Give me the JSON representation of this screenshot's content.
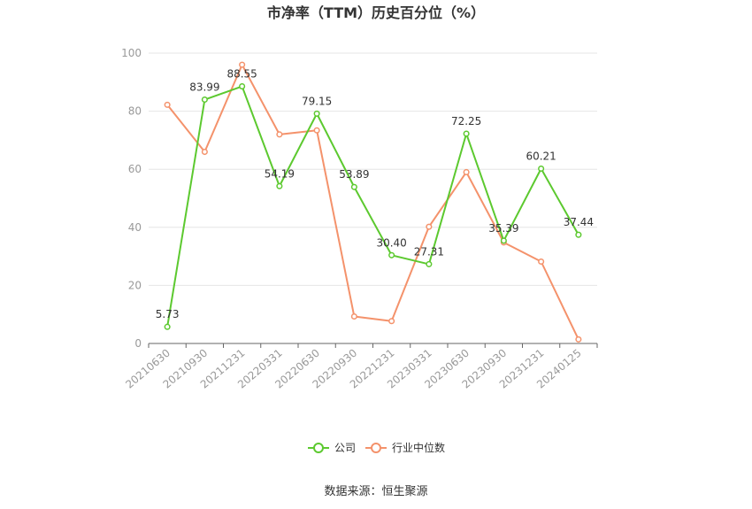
{
  "chart_data": {
    "type": "line",
    "title": "市净率（TTM）历史百分位（%）",
    "categories": [
      "20210630",
      "20210930",
      "20211231",
      "20220331",
      "20220630",
      "20220930",
      "20221231",
      "20230331",
      "20230630",
      "20230930",
      "20231231",
      "20240125"
    ],
    "ylim": [
      0,
      100
    ],
    "yticks": [
      0,
      20,
      40,
      60,
      80,
      100
    ],
    "grid": true,
    "legend_position": "bottom",
    "series": [
      {
        "name": "公司",
        "color": "#5cc92f",
        "values": [
          5.73,
          83.99,
          88.55,
          54.19,
          79.15,
          53.89,
          30.4,
          27.31,
          72.25,
          35.39,
          60.21,
          37.44
        ],
        "labels": [
          "5.73",
          "83.99",
          "88.55",
          "54.19",
          "79.15",
          "53.89",
          "30.40",
          "27.31",
          "72.25",
          "35.39",
          "60.21",
          "37.44"
        ]
      },
      {
        "name": "行业中位数",
        "color": "#f4926b",
        "values": [
          82.2,
          66.0,
          96.0,
          72.0,
          73.4,
          9.3,
          7.7,
          40.2,
          59.0,
          34.8,
          28.2,
          1.4
        ]
      }
    ],
    "source": "数据来源：恒生聚源"
  }
}
